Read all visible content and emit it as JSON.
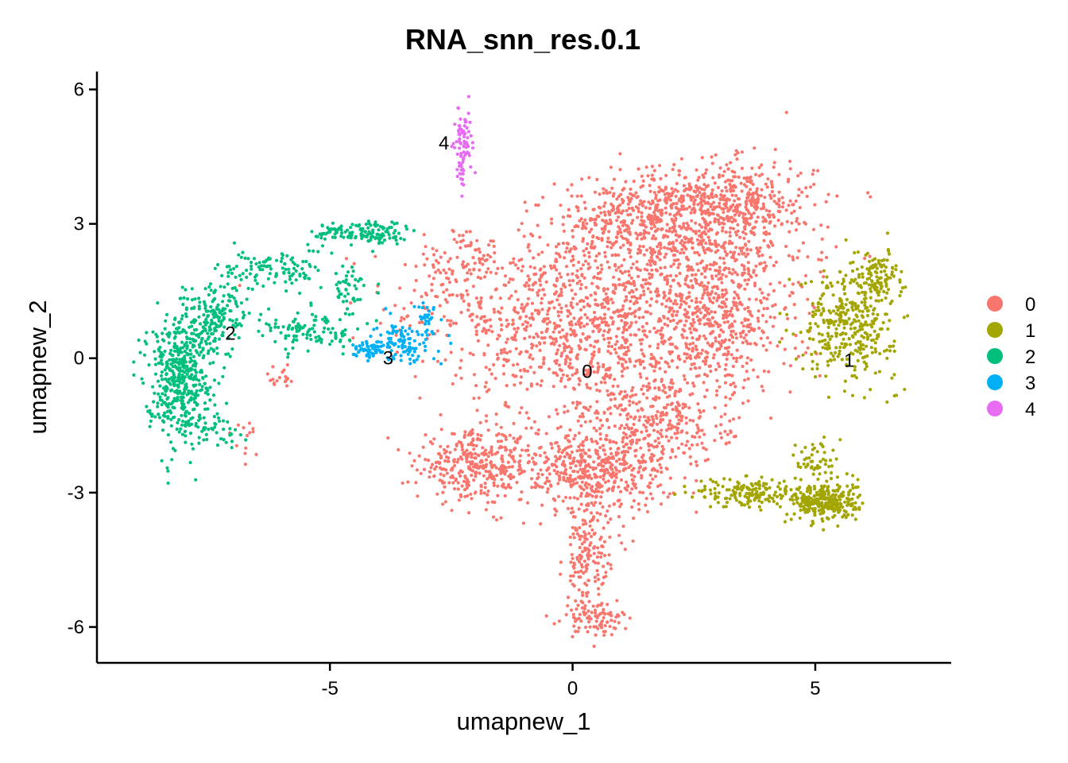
{
  "chart_data": {
    "type": "scatter",
    "title": "RNA_snn_res.0.1",
    "xlabel": "umapnew_1",
    "ylabel": "umapnew_2",
    "xlim": [
      -9.8,
      7.8
    ],
    "ylim": [
      -6.8,
      6.4
    ],
    "xticks": [
      -5,
      0,
      5
    ],
    "xtick_labels": [
      "-5",
      "0",
      "5"
    ],
    "yticks": [
      -6,
      -3,
      0,
      3,
      6
    ],
    "ytick_labels": [
      "-6",
      "-3",
      "0",
      "3",
      "6"
    ],
    "grid": false,
    "legend_position": "right",
    "legend": [
      "0",
      "1",
      "2",
      "3",
      "4"
    ],
    "colors": {
      "0": "#F8766D",
      "1": "#A3A500",
      "2": "#00BF7D",
      "3": "#00B0F6",
      "4": "#E76BF3"
    },
    "cluster_labels": [
      {
        "text": "0",
        "x": 0.3,
        "y": -0.3
      },
      {
        "text": "1",
        "x": 5.7,
        "y": -0.05
      },
      {
        "text": "2",
        "x": -7.05,
        "y": 0.55
      },
      {
        "text": "3",
        "x": -3.8,
        "y": 0.0
      },
      {
        "text": "4",
        "x": -2.65,
        "y": 4.8
      }
    ],
    "series": [
      {
        "name": "0",
        "color": "#F8766D",
        "approx_points": 4200,
        "regions": [
          {
            "cx": -0.8,
            "cy": 1.2,
            "sx": 2.0,
            "sy": 1.2,
            "w": 0.1
          },
          {
            "cx": 2.3,
            "cy": 2.4,
            "sx": 1.7,
            "sy": 1.2,
            "w": 0.16
          },
          {
            "cx": 3.2,
            "cy": 3.5,
            "sx": 1.2,
            "sy": 0.6,
            "w": 0.1
          },
          {
            "cx": 1.2,
            "cy": 3.1,
            "sx": 1.0,
            "sy": 0.5,
            "w": 0.05
          },
          {
            "cx": 0.5,
            "cy": 0.3,
            "sx": 1.6,
            "sy": 1.2,
            "w": 0.14
          },
          {
            "cx": 3.0,
            "cy": 0.7,
            "sx": 1.1,
            "sy": 1.1,
            "w": 0.1
          },
          {
            "cx": -2.0,
            "cy": -2.4,
            "sx": 0.8,
            "sy": 0.5,
            "w": 0.08
          },
          {
            "cx": 0.4,
            "cy": -2.5,
            "sx": 1.1,
            "sy": 0.6,
            "w": 0.12
          },
          {
            "cx": 1.8,
            "cy": -1.5,
            "sx": 1.0,
            "sy": 0.6,
            "w": 0.06
          },
          {
            "cx": 0.3,
            "cy": -4.5,
            "sx": 0.32,
            "sy": 0.9,
            "w": 0.04
          },
          {
            "cx": 0.5,
            "cy": -5.8,
            "sx": 0.45,
            "sy": 0.25,
            "w": 0.02
          },
          {
            "cx": -2.3,
            "cy": 2.0,
            "sx": 0.6,
            "sy": 0.6,
            "w": 0.02
          },
          {
            "cx": -6.0,
            "cy": -0.4,
            "sx": 0.25,
            "sy": 0.2,
            "w": 0.004
          },
          {
            "cx": -6.8,
            "cy": -1.8,
            "sx": 0.2,
            "sy": 0.3,
            "w": 0.003
          }
        ]
      },
      {
        "name": "1",
        "color": "#A3A500",
        "approx_points": 950,
        "regions": [
          {
            "cx": 5.7,
            "cy": 0.8,
            "sx": 0.65,
            "sy": 0.8,
            "w": 0.35
          },
          {
            "cx": 6.3,
            "cy": 1.8,
            "sx": 0.35,
            "sy": 0.4,
            "w": 0.1
          },
          {
            "cx": 5.2,
            "cy": -3.2,
            "sx": 0.45,
            "sy": 0.3,
            "w": 0.3
          },
          {
            "cx": 3.6,
            "cy": -3.0,
            "sx": 0.7,
            "sy": 0.22,
            "w": 0.15
          },
          {
            "cx": 5.0,
            "cy": -2.3,
            "sx": 0.25,
            "sy": 0.35,
            "w": 0.05
          }
        ]
      },
      {
        "name": "2",
        "color": "#00BF7D",
        "approx_points": 1100,
        "regions": [
          {
            "cx": -8.1,
            "cy": -0.4,
            "sx": 0.45,
            "sy": 0.9,
            "w": 0.45
          },
          {
            "cx": -7.4,
            "cy": 0.9,
            "sx": 0.45,
            "sy": 0.5,
            "w": 0.15
          },
          {
            "cx": -6.2,
            "cy": 2.0,
            "sx": 0.7,
            "sy": 0.3,
            "w": 0.1
          },
          {
            "cx": -4.6,
            "cy": 2.8,
            "sx": 0.5,
            "sy": 0.15,
            "w": 0.07
          },
          {
            "cx": -3.9,
            "cy": 2.8,
            "sx": 0.4,
            "sy": 0.2,
            "w": 0.06
          },
          {
            "cx": -5.4,
            "cy": 0.6,
            "sx": 0.7,
            "sy": 0.3,
            "w": 0.1
          },
          {
            "cx": -4.6,
            "cy": 1.5,
            "sx": 0.25,
            "sy": 0.4,
            "w": 0.04
          },
          {
            "cx": -7.3,
            "cy": -1.6,
            "sx": 0.35,
            "sy": 0.3,
            "w": 0.03
          }
        ]
      },
      {
        "name": "3",
        "color": "#00B0F6",
        "approx_points": 190,
        "regions": [
          {
            "cx": -3.5,
            "cy": 0.35,
            "sx": 0.4,
            "sy": 0.3,
            "w": 0.55
          },
          {
            "cx": -4.2,
            "cy": 0.2,
            "sx": 0.2,
            "sy": 0.12,
            "w": 0.3
          },
          {
            "cx": -3.0,
            "cy": 0.9,
            "sx": 0.15,
            "sy": 0.3,
            "w": 0.15
          }
        ]
      },
      {
        "name": "4",
        "color": "#E76BF3",
        "approx_points": 80,
        "regions": [
          {
            "cx": -2.25,
            "cy": 5.0,
            "sx": 0.12,
            "sy": 0.4,
            "w": 0.7
          },
          {
            "cx": -2.3,
            "cy": 4.2,
            "sx": 0.06,
            "sy": 0.3,
            "w": 0.3
          }
        ]
      }
    ]
  }
}
